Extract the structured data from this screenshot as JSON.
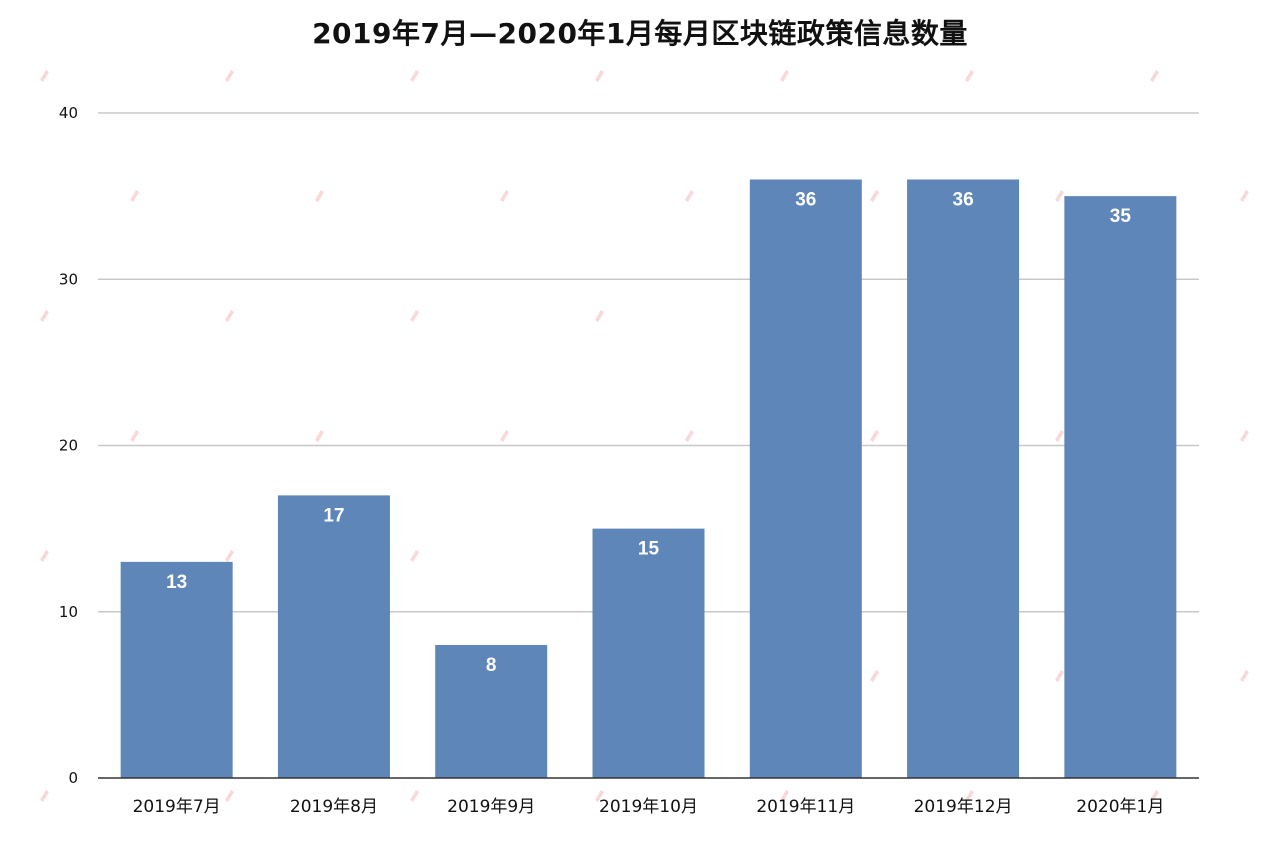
{
  "chart_data": {
    "type": "bar",
    "title": "2019年7月—2020年1月每月区块链政策信息数量",
    "categories": [
      "2019年7月",
      "2019年8月",
      "2019年9月",
      "2019年10月",
      "2019年11月",
      "2019年12月",
      "2020年1月"
    ],
    "values": [
      13,
      17,
      8,
      15,
      36,
      36,
      35
    ],
    "xlabel": "",
    "ylabel": "",
    "ylim": [
      0,
      40
    ],
    "yticks": [
      0,
      10,
      20,
      30,
      40
    ],
    "grid": true,
    "legend": "none",
    "bar_color": "#5e86b8",
    "grid_color": "#c8c8c8",
    "axis_color": "#333333"
  }
}
